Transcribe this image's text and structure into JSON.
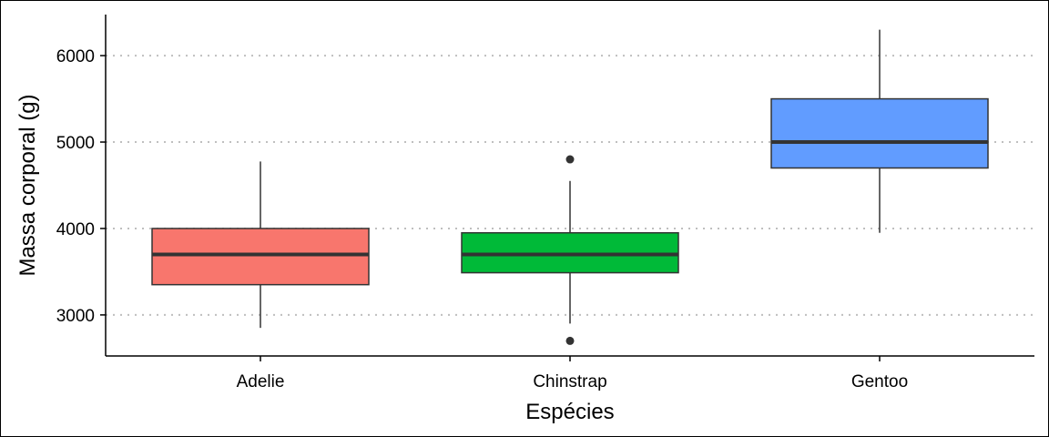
{
  "chart_data": {
    "type": "boxplot",
    "title": "",
    "xlabel": "Espécies",
    "ylabel": "Massa corporal (g)",
    "ylim": [
      2525,
      6475
    ],
    "yticks": [
      3000,
      4000,
      5000,
      6000
    ],
    "ytick_labels": [
      "3000",
      "4000",
      "5000",
      "6000"
    ],
    "grid": "horizontal-dotted",
    "legend": "none",
    "categories": [
      "Adelie",
      "Chinstrap",
      "Gentoo"
    ],
    "boxes": [
      {
        "name": "Adelie",
        "color": "#F8766D",
        "whisker_low": 2850,
        "q1": 3350,
        "median": 3700,
        "q3": 4000,
        "whisker_high": 4775,
        "outliers": []
      },
      {
        "name": "Chinstrap",
        "color": "#00BA38",
        "whisker_low": 2900,
        "q1": 3488,
        "median": 3700,
        "q3": 3950,
        "whisker_high": 4550,
        "outliers": [
          4800,
          2700
        ]
      },
      {
        "name": "Gentoo",
        "color": "#619CFF",
        "whisker_low": 3950,
        "q1": 4700,
        "median": 5000,
        "q3": 5500,
        "whisker_high": 6300,
        "outliers": []
      }
    ]
  }
}
